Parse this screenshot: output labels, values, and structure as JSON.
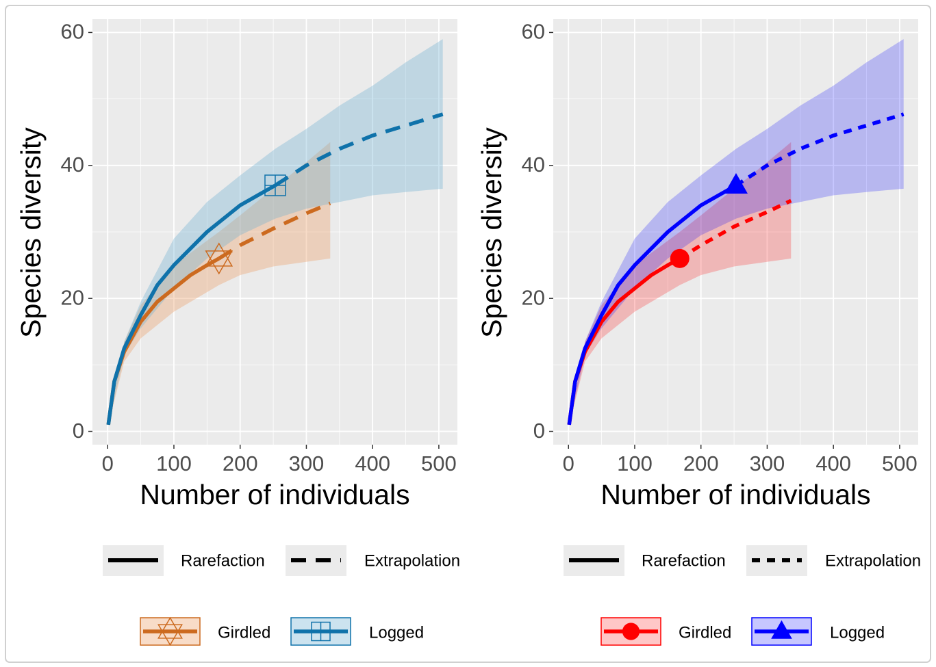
{
  "chart_data": [
    {
      "type": "line",
      "x_label": "Number of individuals",
      "y_label": "Species diversity",
      "xlim": [
        -23,
        528
      ],
      "ylim": [
        -2,
        62
      ],
      "xticks": [
        0,
        100,
        200,
        300,
        400,
        500
      ],
      "yticks": [
        0,
        20,
        40,
        60
      ],
      "grid": true,
      "extrapolation_dash": "long",
      "marker_fill": false,
      "band_opacity": 0.35,
      "linetype_legend": [
        "Rarefaction",
        "Extrapolation"
      ],
      "series": [
        {
          "name": "Girdled",
          "color": "#cc6a1f",
          "band_color": "#eb9a62",
          "marker": "hexagram",
          "rarefaction": {
            "x": [
              1,
              10,
              25,
              50,
              75,
              100,
              125,
              150,
              168
            ],
            "values": [
              1,
              7.5,
              12,
              16.5,
              19.5,
              21.5,
              23.5,
              25,
              26
            ]
          },
          "extrapolation": {
            "x": [
              168,
              200,
              250,
              300,
              336
            ],
            "values": [
              26,
              28,
              30.5,
              32.8,
              34.3
            ]
          },
          "band": {
            "x": [
              1,
              25,
              50,
              100,
              168,
              200,
              250,
              300,
              336
            ],
            "lower": [
              1,
              10.5,
              14,
              18,
              22,
              23.5,
              24.8,
              25.5,
              26
            ],
            "upper": [
              1,
              13.5,
              19,
              25,
              30,
              32.5,
              36.5,
              40.5,
              43.5
            ]
          },
          "observed": {
            "x": 168,
            "y": 26
          }
        },
        {
          "name": "Logged",
          "color": "#0f72aa",
          "band_color": "#6eaed0",
          "marker": "boxplus",
          "rarefaction": {
            "x": [
              1,
              10,
              25,
              50,
              75,
              100,
              150,
              200,
              253
            ],
            "values": [
              1,
              7.5,
              12.5,
              17.5,
              22,
              25,
              30,
              34,
              37
            ]
          },
          "extrapolation": {
            "x": [
              253,
              300,
              350,
              400,
              450,
              506
            ],
            "values": [
              37,
              40,
              42.5,
              44.5,
              46,
              47.7
            ]
          },
          "band": {
            "x": [
              1,
              25,
              50,
              100,
              150,
              200,
              253,
              300,
              350,
              400,
              450,
              506
            ],
            "lower": [
              1,
              11.5,
              15.5,
              21.5,
              26,
              29.5,
              32,
              33.5,
              34.5,
              35.5,
              36,
              36.5
            ],
            "upper": [
              1,
              13.5,
              19.5,
              29,
              34.5,
              38.5,
              42.5,
              45.5,
              49,
              52,
              55.5,
              59
            ]
          },
          "observed": {
            "x": 253,
            "y": 37
          }
        }
      ]
    },
    {
      "type": "line",
      "x_label": "Number of individuals",
      "y_label": "Species diversity",
      "xlim": [
        -23,
        528
      ],
      "ylim": [
        -2,
        62
      ],
      "xticks": [
        0,
        100,
        200,
        300,
        400,
        500
      ],
      "yticks": [
        0,
        20,
        40,
        60
      ],
      "grid": true,
      "extrapolation_dash": "short",
      "marker_fill": true,
      "band_opacity": 0.22,
      "linetype_legend": [
        "Rarefaction",
        "Extrapolation"
      ],
      "series": [
        {
          "name": "Girdled",
          "color": "#ff0000",
          "band_color": "#ff0000",
          "marker": "circle",
          "rarefaction": {
            "x": [
              1,
              10,
              25,
              50,
              75,
              100,
              125,
              150,
              168
            ],
            "values": [
              1,
              7.5,
              12,
              16.5,
              19.5,
              21.5,
              23.5,
              25,
              26
            ]
          },
          "extrapolation": {
            "x": [
              168,
              200,
              250,
              300,
              336
            ],
            "values": [
              26,
              28,
              30.8,
              33,
              34.7
            ]
          },
          "band": {
            "x": [
              1,
              25,
              50,
              100,
              168,
              200,
              250,
              300,
              336
            ],
            "lower": [
              1,
              10.5,
              14,
              18,
              22,
              23.5,
              24.8,
              25.5,
              26
            ],
            "upper": [
              1,
              13.5,
              19,
              25,
              30,
              32.5,
              36.5,
              40.5,
              43.5
            ]
          },
          "observed": {
            "x": 168,
            "y": 26
          }
        },
        {
          "name": "Logged",
          "color": "#0000ff",
          "band_color": "#0000ff",
          "marker": "triangle",
          "rarefaction": {
            "x": [
              1,
              10,
              25,
              50,
              75,
              100,
              150,
              200,
              253
            ],
            "values": [
              1,
              7.5,
              12.5,
              17.5,
              22,
              25,
              30,
              34,
              37
            ]
          },
          "extrapolation": {
            "x": [
              253,
              300,
              350,
              400,
              450,
              506
            ],
            "values": [
              37,
              40,
              42.5,
              44.5,
              46,
              47.7
            ]
          },
          "band": {
            "x": [
              1,
              25,
              50,
              100,
              150,
              200,
              253,
              300,
              350,
              400,
              450,
              506
            ],
            "lower": [
              1,
              11.5,
              15.5,
              21.5,
              26,
              29.5,
              32,
              33.5,
              34.5,
              35.5,
              36,
              36.5
            ],
            "upper": [
              1,
              13.5,
              19.5,
              29,
              34.5,
              38.5,
              42.5,
              45.5,
              49,
              52,
              55.5,
              59
            ]
          },
          "observed": {
            "x": 253,
            "y": 37
          }
        }
      ]
    }
  ]
}
